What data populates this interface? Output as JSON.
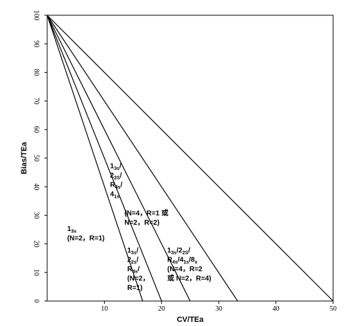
{
  "chart_data": {
    "type": "line",
    "title": "",
    "xlabel": "CV/TEa",
    "ylabel": "Bias/TEa",
    "xlim": [
      0,
      50
    ],
    "ylim": [
      0,
      100
    ],
    "xticks": [
      "10",
      "20",
      "30",
      "40",
      "50"
    ],
    "yticks": [
      "0",
      "10",
      "20",
      "30",
      "40",
      "50",
      "60",
      "70",
      "80",
      "90",
      "100"
    ],
    "grid": false,
    "legend": "none",
    "line_color": "#000000",
    "series": [
      {
        "x": [
          0,
          16.7
        ],
        "y": [
          100,
          0
        ]
      },
      {
        "x": [
          0,
          20
        ],
        "y": [
          100,
          0
        ]
      },
      {
        "x": [
          0,
          25
        ],
        "y": [
          100,
          0
        ]
      },
      {
        "x": [
          0,
          33.3
        ],
        "y": [
          100,
          0
        ]
      },
      {
        "x": [
          0,
          50
        ],
        "y": [
          100,
          0
        ]
      }
    ],
    "annotations": [
      {
        "id": "a1",
        "x": 3.5,
        "y": 24.5,
        "lines": [
          [
            {
              "t": "1"
            },
            {
              "t": "3s",
              "sub": true
            }
          ],
          [
            {
              "t": "(N=2，R=1)"
            }
          ]
        ]
      },
      {
        "id": "a2",
        "x": 14.0,
        "y": 17.0,
        "lines": [
          [
            {
              "t": "1"
            },
            {
              "t": "3s",
              "sub": true
            },
            {
              "t": "/"
            }
          ],
          [
            {
              "t": "2"
            },
            {
              "t": "2s",
              "sub": true
            },
            {
              "t": "/"
            }
          ],
          [
            {
              "t": "R"
            },
            {
              "t": "4s",
              "sub": true
            },
            {
              "t": "/"
            }
          ],
          [
            {
              "t": "(N=2，"
            }
          ],
          [
            {
              "t": "R=1)"
            }
          ]
        ]
      },
      {
        "id": "a3",
        "x": 11.0,
        "y": 46.5,
        "lines": [
          [
            {
              "t": "1"
            },
            {
              "t": "3s",
              "sub": true
            },
            {
              "t": "/"
            }
          ],
          [
            {
              "t": "2"
            },
            {
              "t": "2S",
              "sub": true
            },
            {
              "t": "/"
            }
          ],
          [
            {
              "t": "R"
            },
            {
              "t": "4s",
              "sub": true
            },
            {
              "t": "/"
            }
          ],
          [
            {
              "t": "4"
            },
            {
              "t": "1s",
              "sub": true
            }
          ]
        ]
      },
      {
        "id": "a3b",
        "x": 13.5,
        "y": 30.0,
        "lines": [
          [
            {
              "t": "(N=4，R=1 或"
            }
          ],
          [
            {
              "t": "N=2，R=2)"
            }
          ]
        ]
      },
      {
        "id": "a4",
        "x": 21.0,
        "y": 17.0,
        "lines": [
          [
            {
              "t": "1"
            },
            {
              "t": "3s",
              "sub": true
            },
            {
              "t": "/2"
            },
            {
              "t": "2S",
              "sub": true
            },
            {
              "t": "/"
            }
          ],
          [
            {
              "t": "R"
            },
            {
              "t": "4s",
              "sub": true
            },
            {
              "t": "/4"
            },
            {
              "t": "1s",
              "sub": true
            },
            {
              "t": "/8"
            },
            {
              "t": "x",
              "sub": true
            }
          ],
          [
            {
              "t": "(N=4，R=2"
            }
          ],
          [
            {
              "t": "或 N=2，R=4)"
            }
          ]
        ]
      }
    ]
  }
}
